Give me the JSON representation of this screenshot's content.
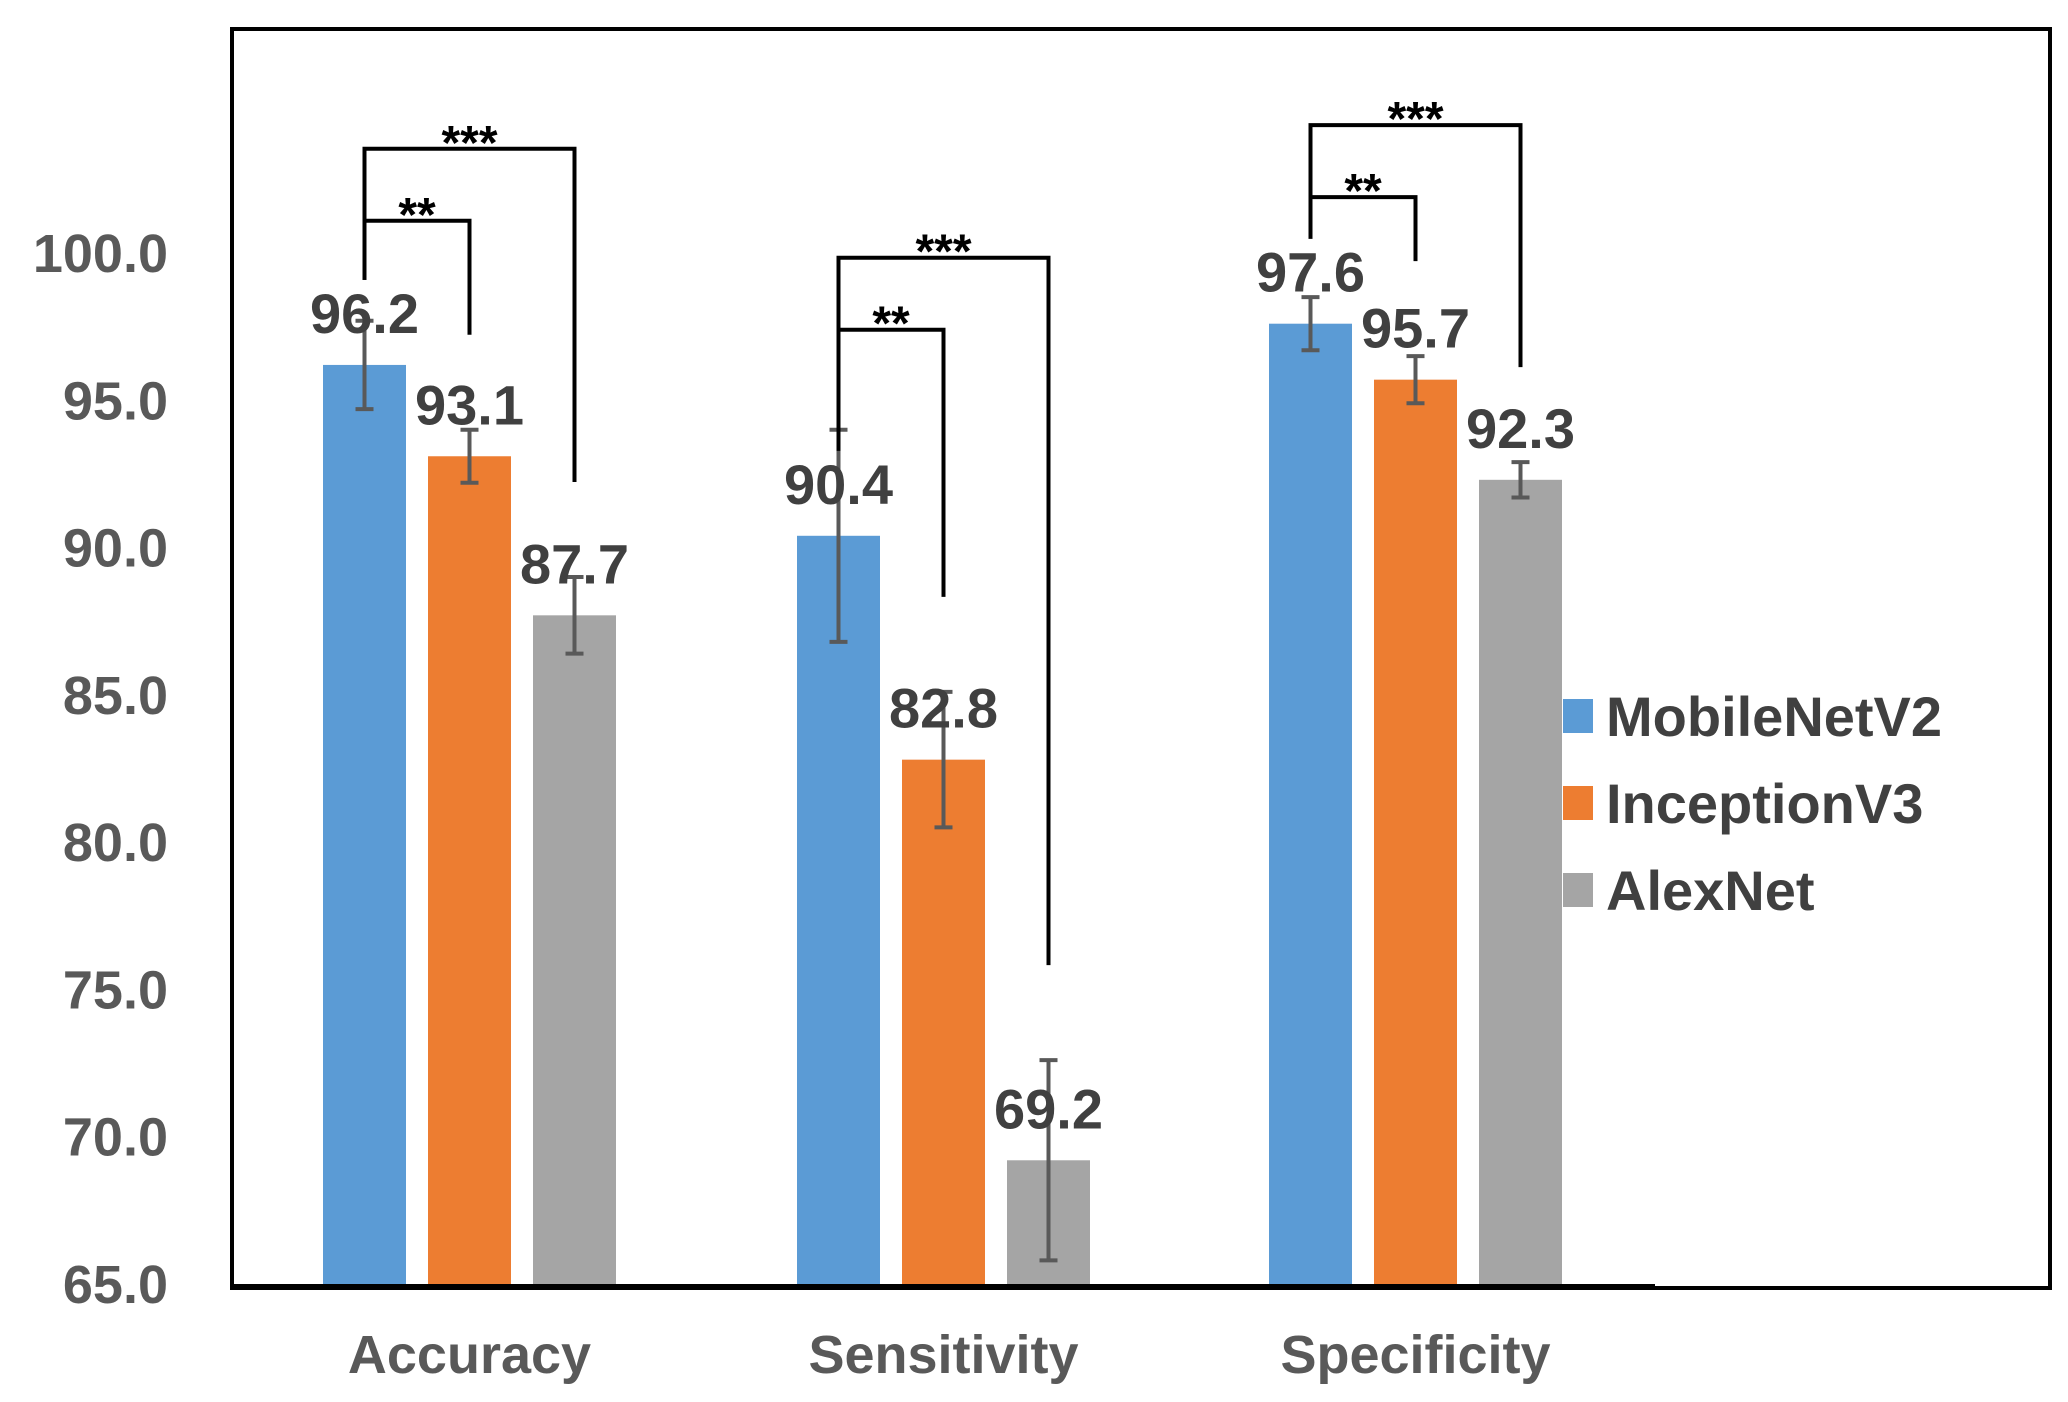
{
  "chart_data": {
    "type": "bar",
    "title": "",
    "xlabel": "",
    "ylabel": "",
    "ylim": [
      65,
      108
    ],
    "yticks": [
      "65.0",
      "70.0",
      "75.0",
      "80.0",
      "85.0",
      "90.0",
      "95.0",
      "100.0"
    ],
    "categories": [
      "Accuracy",
      "Sensitivity",
      "Specificity"
    ],
    "series": [
      {
        "name": "MobileNetV2",
        "color": "#5B9BD5",
        "values": [
          96.2,
          90.4,
          97.6
        ],
        "labels": [
          "96.2",
          "90.4",
          "97.6"
        ],
        "errors": [
          1.5,
          3.6,
          0.9
        ]
      },
      {
        "name": "InceptionV3",
        "color": "#ED7D31",
        "values": [
          93.1,
          82.8,
          95.7
        ],
        "labels": [
          "93.1",
          "82.8",
          "95.7"
        ],
        "errors": [
          0.9,
          2.3,
          0.8
        ]
      },
      {
        "name": "AlexNet",
        "color": "#A5A5A5",
        "values": [
          87.7,
          69.2,
          92.3
        ],
        "labels": [
          "87.7",
          "69.2",
          "92.3"
        ],
        "errors": [
          1.3,
          3.4,
          0.6
        ]
      }
    ],
    "significance": [
      {
        "category": 0,
        "from": 0,
        "to": 1,
        "label": "**"
      },
      {
        "category": 0,
        "from": 0,
        "to": 2,
        "label": "***"
      },
      {
        "category": 1,
        "from": 0,
        "to": 1,
        "label": "**"
      },
      {
        "category": 1,
        "from": 0,
        "to": 2,
        "label": "***"
      },
      {
        "category": 2,
        "from": 0,
        "to": 1,
        "label": "**"
      },
      {
        "category": 2,
        "from": 0,
        "to": 2,
        "label": "***"
      }
    ],
    "legend": {
      "position": "right"
    },
    "grid": false
  }
}
